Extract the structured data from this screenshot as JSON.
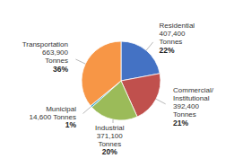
{
  "chart_data": {
    "type": "pie",
    "categories": [
      "Residential",
      "Commercial/\nInstitutional",
      "Industrial",
      "Municipal",
      "Transportation"
    ],
    "values": [
      407400,
      392400,
      371100,
      14600,
      663900
    ],
    "value_labels": [
      "407,400\nTonnes",
      "392,400\nTonnes",
      "371,100\nTonnes",
      "14,600 Tonnes",
      "663,900\nTonnes"
    ],
    "shares": [
      22,
      21,
      20,
      1,
      36
    ],
    "share_labels": [
      "22%",
      "21%",
      "20%",
      "1%",
      "36%"
    ],
    "colors": [
      "#4472C4",
      "#C0504D",
      "#9BBB59",
      "#4BACC6",
      "#F79646"
    ],
    "data_labels": true
  }
}
